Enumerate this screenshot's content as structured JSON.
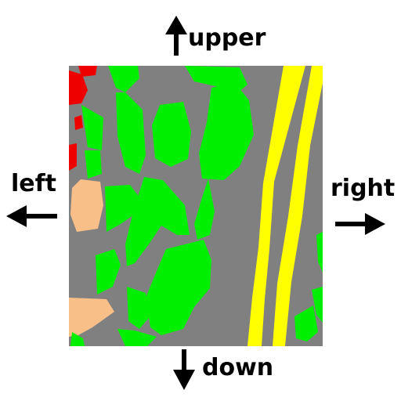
{
  "labels": {
    "upper": "upper",
    "left": "left",
    "right": "right",
    "down": "down"
  },
  "map": {
    "colors": {
      "background": "#808080",
      "vegetation": "#00ee00",
      "road": "#ffff00",
      "building": "#ee0000",
      "bare_ground": "#f8c088",
      "arrow": "#000000"
    }
  }
}
